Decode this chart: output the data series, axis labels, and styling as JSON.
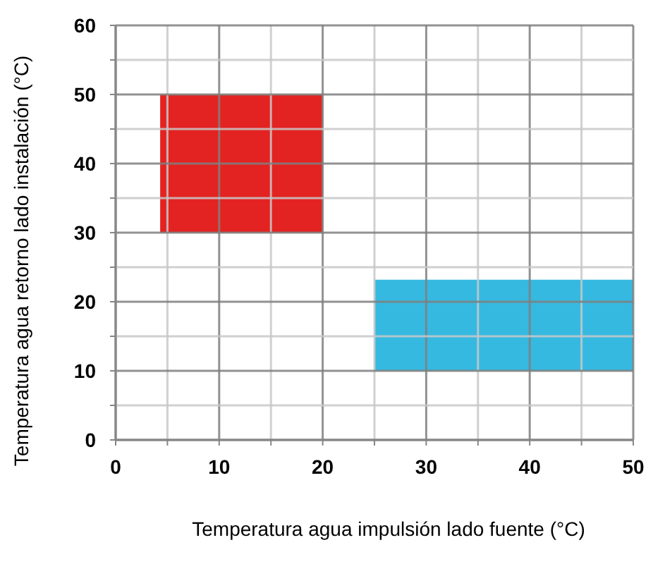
{
  "chart_data": {
    "type": "area",
    "xlabel": "Temperatura agua impulsión lado fuente (°C)",
    "ylabel": "Temperatura agua retorno lado instalación (°C)",
    "xlim": [
      0,
      50
    ],
    "ylim": [
      0,
      60
    ],
    "xticks": [
      0,
      {
        "value": 5,
        "label": null
      },
      10,
      {
        "value": 15,
        "label": null
      },
      20,
      {
        "value": 25,
        "label": null
      },
      30,
      {
        "value": 35,
        "label": null
      },
      40,
      {
        "value": 45,
        "label": null
      },
      50
    ],
    "yticks": [
      0,
      {
        "value": 5,
        "label": null
      },
      10,
      {
        "value": 15,
        "label": null
      },
      20,
      {
        "value": 25,
        "label": null
      },
      30,
      {
        "value": 35,
        "label": null
      },
      40,
      {
        "value": 45,
        "label": null
      },
      50,
      {
        "value": 55,
        "label": null
      },
      60
    ],
    "grid": true,
    "series": [
      {
        "color": "#e32322",
        "x": [
          4.3,
          20
        ],
        "lower": [
          30,
          30
        ],
        "upper": [
          50,
          50
        ],
        "values": [
          null,
          null
        ]
      },
      {
        "color": "#36b9e0",
        "x": [
          25,
          50
        ],
        "lower": [
          10,
          10
        ],
        "upper": [
          23.2,
          23.2
        ],
        "values": [
          null,
          null
        ]
      }
    ]
  }
}
